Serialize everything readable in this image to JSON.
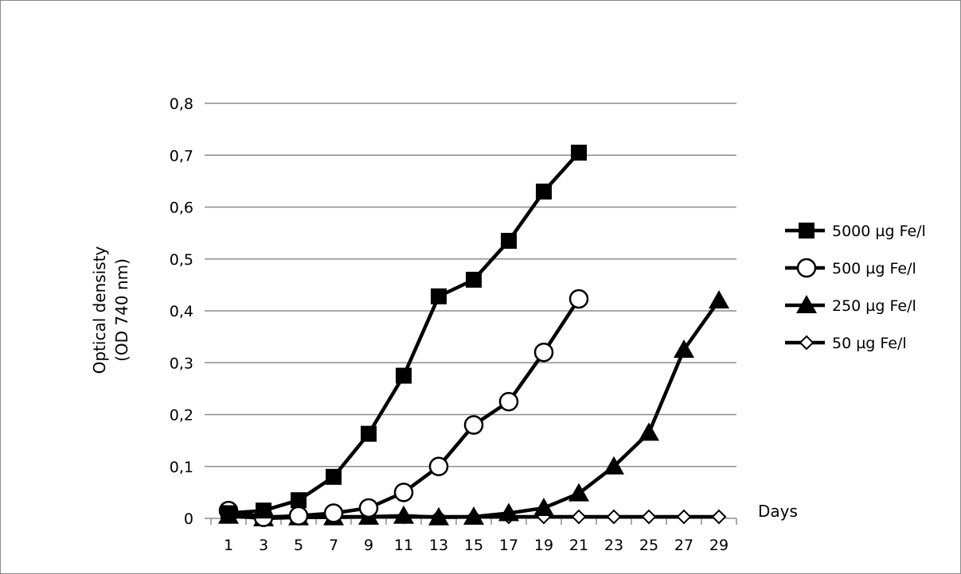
{
  "chart_data": {
    "type": "line",
    "title": "",
    "xlabel": "Days",
    "ylabel_lines": [
      "Optical densisty",
      "(OD 740 nm)"
    ],
    "x": [
      1,
      3,
      5,
      7,
      9,
      11,
      13,
      15,
      17,
      19,
      21,
      23,
      25,
      27,
      29
    ],
    "x_tick_labels": [
      "1",
      "3",
      "5",
      "7",
      "9",
      "11",
      "13",
      "15",
      "17",
      "19",
      "21",
      "23",
      "25",
      "27",
      "29"
    ],
    "y_tick_labels": [
      "0",
      "0,1",
      "0,2",
      "0,3",
      "0,4",
      "0,5",
      "0,6",
      "0,7",
      "0,8"
    ],
    "ylim": [
      0,
      0.8
    ],
    "grid": true,
    "legend_position": "right",
    "series": [
      {
        "name": "5000 µg Fe/l",
        "marker": "square-filled",
        "values": [
          0.01,
          0.015,
          0.035,
          0.08,
          0.163,
          0.275,
          0.428,
          0.46,
          0.535,
          0.63,
          0.705,
          null,
          null,
          null,
          null
        ]
      },
      {
        "name": "500 µg Fe/l",
        "marker": "circle-open",
        "values": [
          0.015,
          0.002,
          0.005,
          0.01,
          0.02,
          0.05,
          0.1,
          0.18,
          0.225,
          0.32,
          0.423,
          null,
          null,
          null,
          null
        ]
      },
      {
        "name": "250 µg Fe/l",
        "marker": "triangle-filled",
        "values": [
          0.005,
          0.0,
          0.002,
          0.002,
          0.003,
          0.005,
          0.002,
          0.003,
          0.01,
          0.02,
          0.048,
          0.1,
          0.165,
          0.325,
          0.42
        ]
      },
      {
        "name": "50 µg Fe/l",
        "marker": "diamond-open",
        "values": [
          0.005,
          0.003,
          0.003,
          0.003,
          0.003,
          0.003,
          0.003,
          0.003,
          0.003,
          0.003,
          0.003,
          0.003,
          0.003,
          0.003,
          0.003
        ]
      }
    ]
  },
  "colors": {
    "line": "#000000",
    "grid": "#8c8c8c",
    "background": "#ffffff"
  }
}
